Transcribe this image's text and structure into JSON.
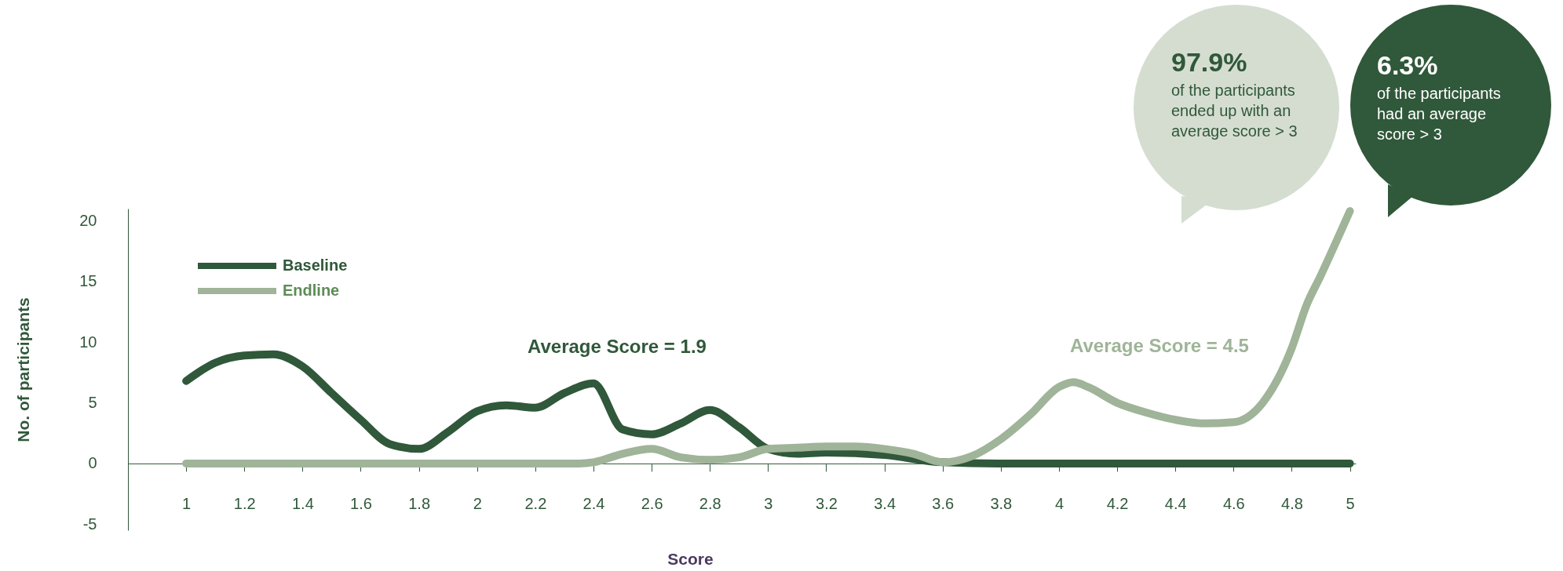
{
  "chart_data": {
    "type": "line",
    "xlabel": "Score",
    "ylabel": "No. of participants",
    "xlim": [
      0.8,
      5.02
    ],
    "xticks": [
      1,
      1.2,
      1.4,
      1.6,
      1.8,
      2,
      2.2,
      2.4,
      2.6,
      2.8,
      3,
      3.2,
      3.4,
      3.6,
      3.8,
      4,
      4.2,
      4.4,
      4.6,
      4.8,
      5
    ],
    "ylim": [
      -5.5,
      21
    ],
    "yticks": [
      -5,
      0,
      5,
      10,
      15,
      20
    ],
    "grid": false,
    "legend": "top left",
    "marker": "none",
    "line_style": "solid",
    "series": [
      {
        "name": "Baseline",
        "color": "#30583a",
        "x": [
          1,
          1.1,
          1.2,
          1.3,
          1.4,
          1.5,
          1.6,
          1.7,
          1.8,
          1.9,
          2,
          2.1,
          2.2,
          2.3,
          2.4,
          2.5,
          2.6,
          2.7,
          2.8,
          2.9,
          3,
          3.1,
          3.2,
          3.4,
          3.6,
          3.8,
          4,
          4.2,
          4.4,
          4.6,
          4.8,
          5
        ],
        "values": [
          6.8,
          8.3,
          8.9,
          9.0,
          8.0,
          5.8,
          3.6,
          1.6,
          1.2,
          2.6,
          4.3,
          4.8,
          4.6,
          5.8,
          6.6,
          2.8,
          2.4,
          3.3,
          4.4,
          3.0,
          1.2,
          0.8,
          0.9,
          0.7,
          0.1,
          0,
          0,
          0,
          0,
          0,
          0,
          0
        ]
      },
      {
        "name": "Endline",
        "color": "#9fb498",
        "x": [
          1,
          1.2,
          1.4,
          1.6,
          1.8,
          2,
          2.2,
          2.35,
          2.4,
          2.5,
          2.6,
          2.7,
          2.8,
          2.9,
          3,
          3.1,
          3.2,
          3.3,
          3.4,
          3.5,
          3.6,
          3.7,
          3.8,
          3.9,
          4,
          4.05,
          4.1,
          4.2,
          4.3,
          4.4,
          4.5,
          4.6,
          4.7,
          4.8,
          4.85,
          4.9,
          5
        ],
        "values": [
          0,
          0,
          0,
          0,
          0,
          0,
          0,
          0,
          0.1,
          0.8,
          1.2,
          0.5,
          0.3,
          0.5,
          1.2,
          1.3,
          1.4,
          1.4,
          1.2,
          0.8,
          0.1,
          0.6,
          2,
          4,
          6.3,
          6.7,
          6.3,
          5,
          4.2,
          3.6,
          3.3,
          3.4,
          5,
          9.5,
          13,
          15.5,
          20.8
        ]
      }
    ],
    "annotations": [
      "Average Score = 1.9",
      "Average Score = 4.5",
      "97.9%",
      "of the participants ended up with an average score > 3",
      "6.3%",
      "of the participants had an average score > 3"
    ]
  }
}
